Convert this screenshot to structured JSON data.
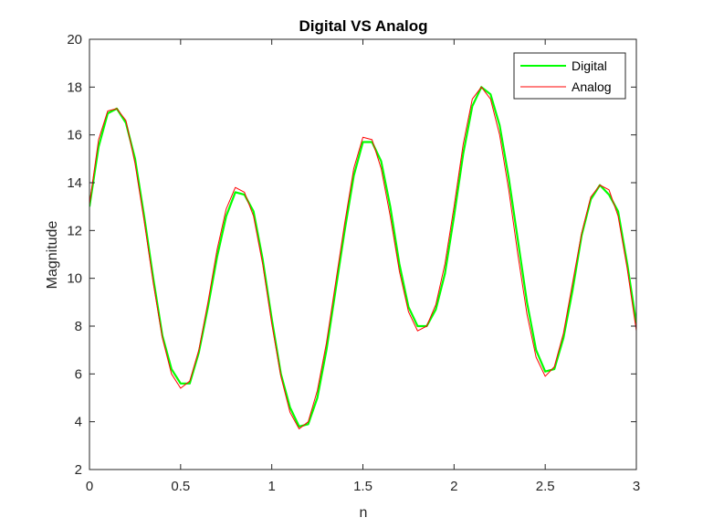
{
  "chart_data": {
    "type": "line",
    "title": "Digital VS Analog",
    "xlabel": "n",
    "ylabel": "Magnitude",
    "xlim": [
      0,
      3
    ],
    "ylim": [
      2,
      20
    ],
    "xticks": [
      0,
      0.5,
      1,
      1.5,
      2,
      2.5,
      3
    ],
    "xtick_labels": [
      "0",
      "0.5",
      "1",
      "1.5",
      "2",
      "2.5",
      "3"
    ],
    "yticks": [
      2,
      4,
      6,
      8,
      10,
      12,
      14,
      16,
      18,
      20
    ],
    "ytick_labels": [
      "2",
      "4",
      "6",
      "8",
      "10",
      "12",
      "14",
      "16",
      "18",
      "20"
    ],
    "grid": false,
    "legend": "top-right",
    "series": [
      {
        "name": "Digital",
        "color": "#00ff00",
        "x": [
          0,
          0.05,
          0.1,
          0.15,
          0.2,
          0.25,
          0.3,
          0.35,
          0.4,
          0.45,
          0.5,
          0.55,
          0.6,
          0.65,
          0.7,
          0.75,
          0.8,
          0.85,
          0.9,
          0.95,
          1.0,
          1.05,
          1.1,
          1.15,
          1.2,
          1.25,
          1.3,
          1.35,
          1.4,
          1.45,
          1.5,
          1.55,
          1.6,
          1.65,
          1.7,
          1.75,
          1.8,
          1.85,
          1.9,
          1.95,
          2.0,
          2.05,
          2.1,
          2.15,
          2.2,
          2.25,
          2.3,
          2.35,
          2.4,
          2.45,
          2.5,
          2.55,
          2.6,
          2.65,
          2.7,
          2.75,
          2.8,
          2.85,
          2.9,
          2.95,
          3.0
        ],
        "values": [
          13.0,
          15.5,
          16.9,
          17.1,
          16.5,
          15.0,
          12.6,
          10.0,
          7.6,
          6.2,
          5.6,
          5.6,
          6.9,
          8.8,
          10.9,
          12.6,
          13.6,
          13.5,
          12.8,
          10.8,
          8.3,
          6.0,
          4.6,
          3.8,
          3.9,
          5.0,
          7.0,
          9.5,
          12.0,
          14.3,
          15.7,
          15.7,
          14.9,
          13.0,
          10.6,
          8.8,
          8.0,
          8.0,
          8.7,
          10.2,
          12.6,
          15.2,
          17.2,
          18.0,
          17.7,
          16.4,
          14.2,
          11.6,
          9.0,
          7.0,
          6.1,
          6.2,
          7.5,
          9.5,
          11.8,
          13.3,
          13.9,
          13.5,
          12.8,
          10.6,
          8.1
        ]
      },
      {
        "name": "Analog",
        "color": "#ff0000",
        "x": [
          0,
          0.05,
          0.1,
          0.15,
          0.2,
          0.25,
          0.3,
          0.35,
          0.4,
          0.45,
          0.5,
          0.55,
          0.6,
          0.65,
          0.7,
          0.75,
          0.8,
          0.85,
          0.9,
          0.95,
          1.0,
          1.05,
          1.1,
          1.15,
          1.2,
          1.25,
          1.3,
          1.35,
          1.4,
          1.45,
          1.5,
          1.55,
          1.6,
          1.65,
          1.7,
          1.75,
          1.8,
          1.85,
          1.9,
          1.95,
          2.0,
          2.05,
          2.1,
          2.15,
          2.2,
          2.25,
          2.3,
          2.35,
          2.4,
          2.45,
          2.5,
          2.55,
          2.6,
          2.65,
          2.7,
          2.75,
          2.8,
          2.85,
          2.9,
          2.95,
          3.0
        ],
        "values": [
          13.1,
          15.8,
          17.0,
          17.1,
          16.6,
          14.8,
          12.4,
          9.8,
          7.5,
          6.0,
          5.4,
          5.7,
          7.0,
          9.0,
          11.2,
          12.9,
          13.8,
          13.6,
          12.6,
          10.6,
          8.1,
          5.9,
          4.4,
          3.7,
          4.0,
          5.3,
          7.3,
          9.8,
          12.3,
          14.6,
          15.9,
          15.8,
          14.6,
          12.6,
          10.3,
          8.6,
          7.8,
          8.0,
          8.9,
          10.6,
          13.0,
          15.6,
          17.5,
          18.0,
          17.5,
          16.0,
          13.7,
          11.0,
          8.5,
          6.7,
          5.9,
          6.3,
          7.7,
          9.8,
          11.9,
          13.4,
          13.9,
          13.7,
          12.6,
          10.4,
          7.8
        ]
      }
    ]
  }
}
